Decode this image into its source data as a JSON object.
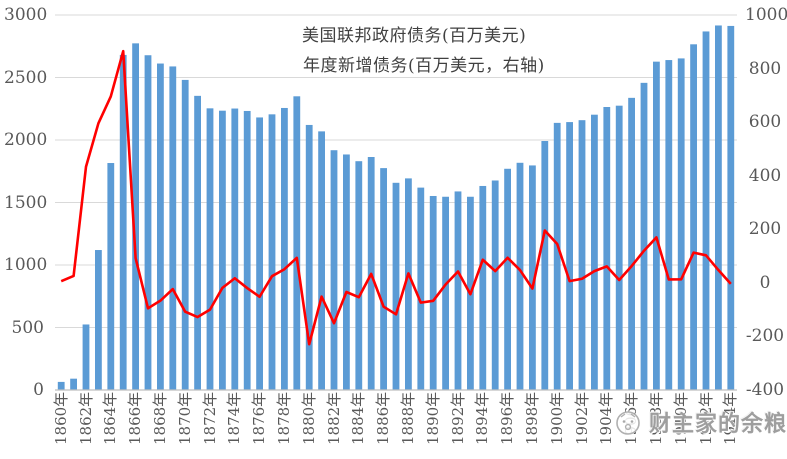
{
  "chart_data": {
    "type": "bar+line",
    "title": "",
    "categories": [
      1860,
      1861,
      1862,
      1863,
      1864,
      1865,
      1866,
      1867,
      1868,
      1869,
      1870,
      1871,
      1872,
      1873,
      1874,
      1875,
      1876,
      1877,
      1878,
      1879,
      1880,
      1881,
      1882,
      1883,
      1884,
      1885,
      1886,
      1887,
      1888,
      1889,
      1890,
      1891,
      1892,
      1893,
      1894,
      1895,
      1896,
      1897,
      1898,
      1899,
      1900,
      1901,
      1902,
      1903,
      1904,
      1905,
      1906,
      1907,
      1908,
      1909,
      1910,
      1911,
      1912,
      1913,
      1914
    ],
    "x_label_suffix": "年",
    "x_label_step": 2,
    "grid": true,
    "legend_position": "top-center",
    "series": [
      {
        "name": "美国联邦政府债务(百万美元)",
        "type": "bar",
        "axis": "left",
        "color": "#5B9BD5",
        "values": [
          64.8,
          90.6,
          524.2,
          1119.8,
          1815.8,
          2680.6,
          2773.2,
          2678.1,
          2611.7,
          2588.5,
          2480.7,
          2353.2,
          2253.3,
          2234.5,
          2251.7,
          2232.3,
          2180.4,
          2205.3,
          2256.2,
          2349.6,
          2120.4,
          2069.0,
          1918.3,
          1884.2,
          1830.5,
          1864.0,
          1775.1,
          1657.6,
          1692.9,
          1619.1,
          1552.1,
          1546.0,
          1588.5,
          1546.0,
          1632.3,
          1676.1,
          1769.8,
          1817.7,
          1796.5,
          1991.9,
          2137.0,
          2143.3,
          2158.6,
          2202.5,
          2264.0,
          2274.6,
          2337.2,
          2457.2,
          2626.8,
          2639.5,
          2652.7,
          2765.6,
          2868.4,
          2916.2,
          2912.5
        ]
      },
      {
        "name": "年度新增债务(百万美元，右轴)",
        "type": "line",
        "axis": "right",
        "color": "#FF0000",
        "values": [
          6.3,
          25.7,
          433.6,
          595.6,
          696.0,
          864.9,
          92.6,
          -95.1,
          -66.4,
          -23.2,
          -107.8,
          -127.5,
          -100.0,
          -18.8,
          17.2,
          -19.4,
          -51.9,
          24.9,
          50.9,
          93.4,
          -229.2,
          -51.4,
          -150.7,
          -34.1,
          -53.6,
          33.4,
          -88.9,
          -117.5,
          35.3,
          -73.8,
          -66.9,
          -6.1,
          42.5,
          -42.5,
          86.3,
          43.9,
          93.7,
          47.8,
          -21.1,
          195.4,
          145.0,
          6.4,
          15.3,
          43.9,
          61.5,
          10.6,
          62.5,
          120.0,
          169.6,
          12.7,
          13.1,
          112.9,
          102.8,
          47.8,
          -3.7
        ]
      }
    ],
    "left_axis": {
      "min": 0,
      "max": 3000,
      "ticks": [
        0,
        500,
        1000,
        1500,
        2000,
        2500,
        3000
      ]
    },
    "right_axis": {
      "min": -400,
      "max": 1000,
      "ticks": [
        -400,
        -200,
        0,
        200,
        400,
        600,
        800,
        1000
      ]
    }
  },
  "colors": {
    "bar": "#5B9BD5",
    "line": "#FF0000",
    "gridline": "#D9D9D9",
    "axis_line": "#BFBFBF",
    "tick_text": "#595959"
  },
  "watermark": {
    "icon": "surprised-face-icon",
    "text": "财主家的余粮"
  }
}
